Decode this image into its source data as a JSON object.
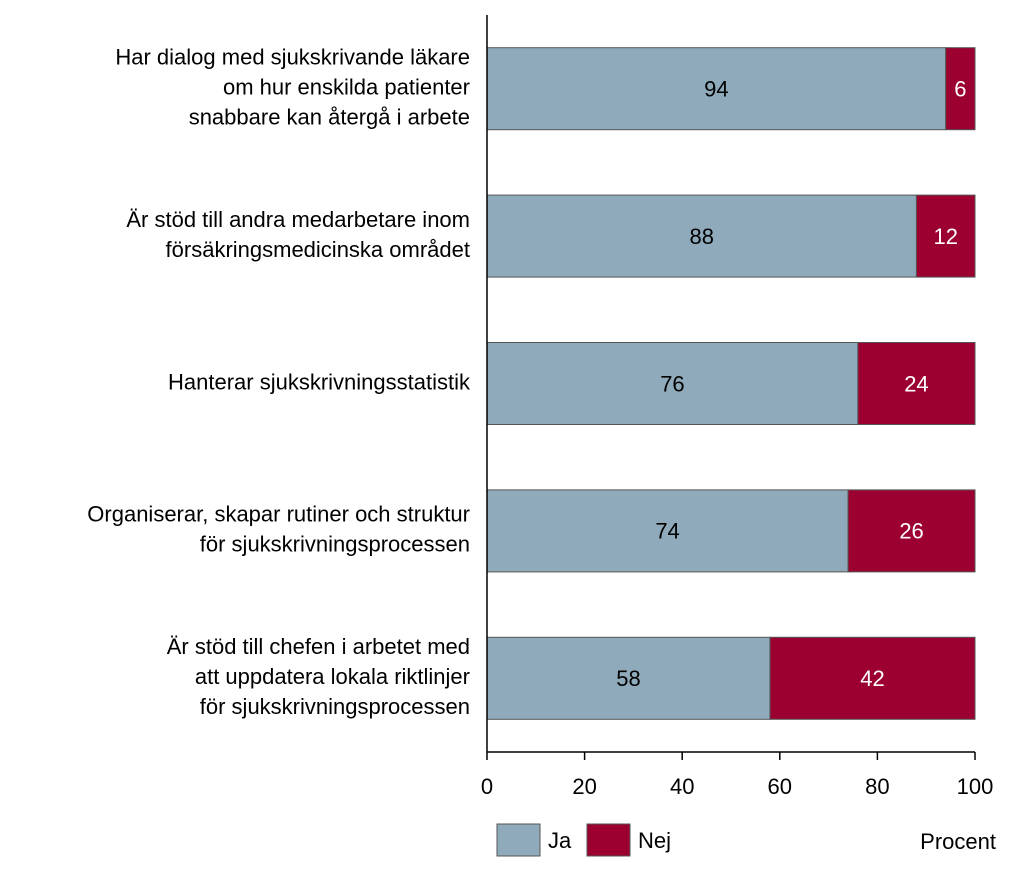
{
  "chart_data": {
    "type": "stacked_bar_horizontal",
    "categories": [
      [
        "Har dialog med sjukskrivande läkare",
        "om hur enskilda patienter",
        "snabbare kan återgå i arbete"
      ],
      [
        "Är stöd till andra medarbetare inom",
        "försäkringsmedicinska området"
      ],
      [
        "Hanterar sjukskrivningsstatistik"
      ],
      [
        "Organiserar, skapar rutiner och struktur",
        "för sjukskrivningsprocessen"
      ],
      [
        "Är stöd till chefen i arbetet med",
        "att uppdatera lokala riktlinjer",
        "för sjukskrivningsprocessen"
      ]
    ],
    "series": [
      {
        "name": "Ja",
        "color": "#8eaabb",
        "label_color": "#000000",
        "values": [
          94,
          88,
          76,
          74,
          58
        ]
      },
      {
        "name": "Nej",
        "color": "#9b0030",
        "label_color": "#ffffff",
        "values": [
          6,
          12,
          24,
          26,
          42
        ]
      }
    ],
    "x_label": "Procent",
    "xlim": [
      0,
      100
    ],
    "xticks": [
      0,
      20,
      40,
      60,
      80,
      100
    ],
    "grid": false,
    "legend": "bottom-left"
  }
}
